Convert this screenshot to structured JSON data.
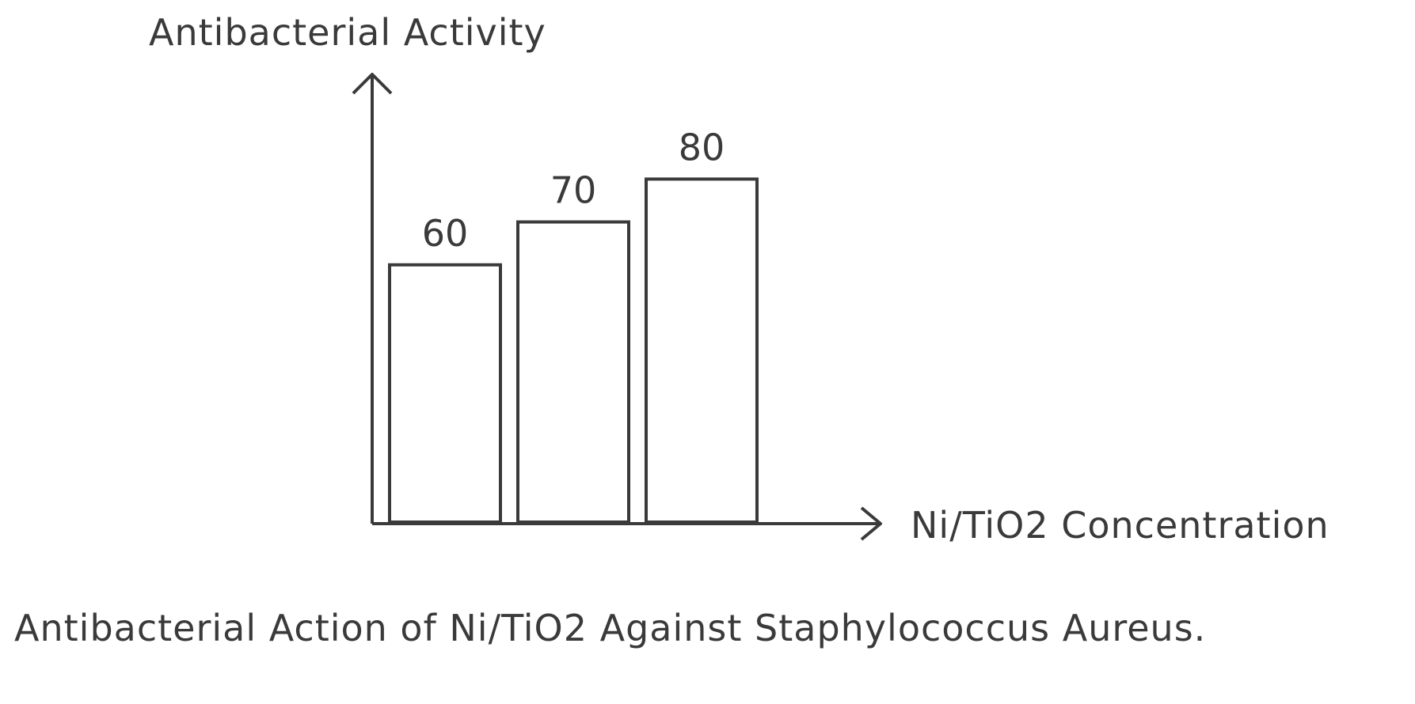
{
  "chart_data": {
    "type": "bar",
    "categories": [
      "",
      "",
      ""
    ],
    "values": [
      60,
      70,
      80
    ],
    "data_labels": [
      "60",
      "70",
      "80"
    ],
    "title": "",
    "xlabel": "Ni/TiO2 Concentration",
    "ylabel": "Antibacterial Activity",
    "ylim": [
      0,
      100
    ],
    "grid": false,
    "bar_fill": "#ffffff",
    "stroke_color": "#3a3a3a"
  },
  "caption": "Antibacterial Action of Ni/TiO2 Against Staphylococcus Aureus."
}
